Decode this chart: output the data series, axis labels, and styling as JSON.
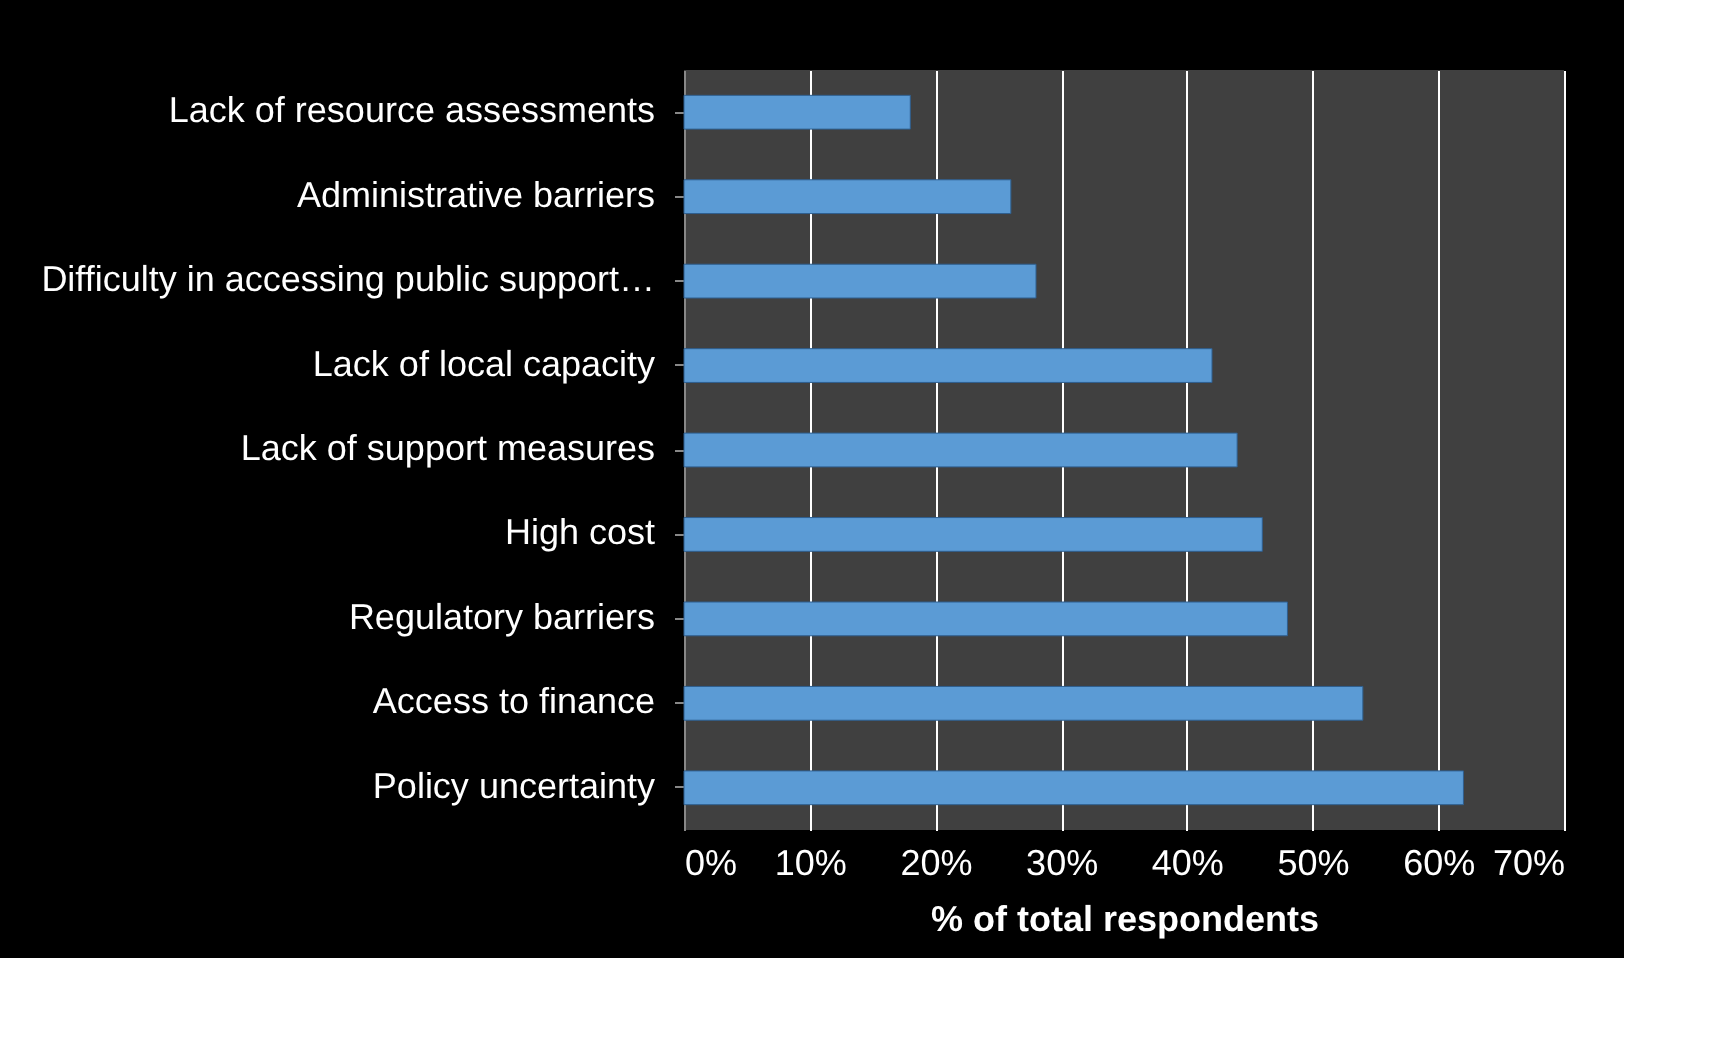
{
  "chart_data": {
    "type": "bar",
    "orientation": "horizontal",
    "xlabel": "% of total respondents",
    "categories": [
      "Lack of resource assessments",
      "Administrative barriers",
      "Difficulty in accessing public support…",
      "Lack of local capacity",
      "Lack of support measures",
      "High cost",
      "Regulatory barriers",
      "Access to finance",
      "Policy uncertainty"
    ],
    "values": [
      18,
      26,
      28,
      42,
      44,
      46,
      48,
      54,
      62
    ],
    "color": "#5b9bd5",
    "xlim": [
      0,
      70
    ],
    "xticks": [
      {
        "value": 0,
        "label": "0%"
      },
      {
        "value": 10,
        "label": "10%"
      },
      {
        "value": 20,
        "label": "20%"
      },
      {
        "value": 30,
        "label": "30%"
      },
      {
        "value": 40,
        "label": "40%"
      },
      {
        "value": 50,
        "label": "50%"
      },
      {
        "value": 60,
        "label": "60%"
      },
      {
        "value": 70,
        "label": "70%"
      }
    ],
    "grid": "x"
  }
}
